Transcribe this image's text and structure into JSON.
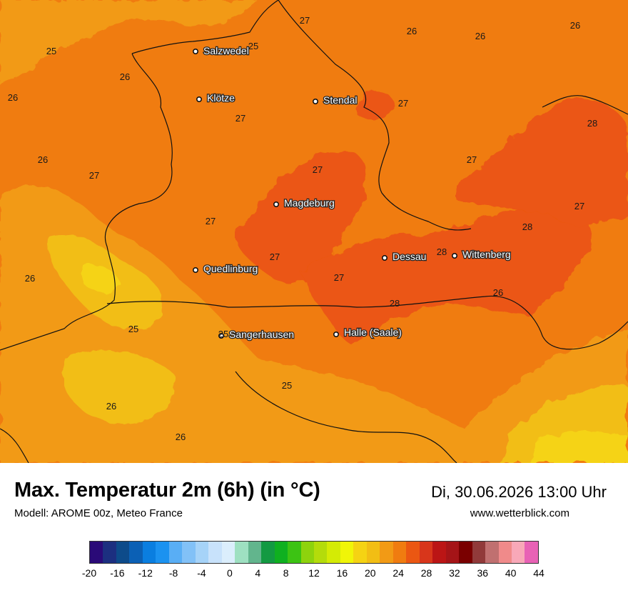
{
  "header": {
    "title": "Max. Temperatur 2m (6h) (in °C)",
    "subtitle": "Modell: AROME 00z, Meteo France",
    "datetime": "Di, 30.06.2026 13:00 Uhr",
    "website": "www.wetterblick.com"
  },
  "cities": [
    {
      "name": "Salzwedel"
    },
    {
      "name": "Klötze"
    },
    {
      "name": "Stendal"
    },
    {
      "name": "Magdeburg"
    },
    {
      "name": "Quedlinburg"
    },
    {
      "name": "Dessau"
    },
    {
      "name": "Wittenberg"
    },
    {
      "name": "Sangerhausen"
    },
    {
      "name": "Halle (Saale)"
    }
  ],
  "temperature_labels": [
    "27",
    "26",
    "26",
    "26",
    "25",
    "25",
    "26",
    "26",
    "27",
    "27",
    "28",
    "26",
    "27",
    "27",
    "27",
    "27",
    "27",
    "28",
    "26",
    "27",
    "28",
    "27",
    "28",
    "25",
    "25",
    "25",
    "26",
    "26",
    "26"
  ],
  "legend": {
    "colors": [
      "#2a0a78",
      "#1c2f80",
      "#0d4b8a",
      "#0b60b5",
      "#0a7ee0",
      "#1b92f0",
      "#59aef5",
      "#82c1f7",
      "#a6d3f8",
      "#c8e2fb",
      "#dbeefc",
      "#9ee0c1",
      "#62b58d",
      "#139a42",
      "#0fb020",
      "#3cc313",
      "#8ed30d",
      "#b4dc0b",
      "#d4eb05",
      "#f0f508",
      "#f5d313",
      "#f2be14",
      "#f29a15",
      "#f07c10",
      "#eb5712",
      "#d8361b",
      "#bb1515",
      "#a51417",
      "#7a0000",
      "#913a3a",
      "#c07070",
      "#f08a8a",
      "#f8a8b8",
      "#e862b5"
    ],
    "ticks": [
      "-20",
      "-16",
      "-12",
      "-8",
      "-4",
      "0",
      "4",
      "8",
      "12",
      "16",
      "20",
      "24",
      "28",
      "32",
      "36",
      "40",
      "44"
    ]
  }
}
